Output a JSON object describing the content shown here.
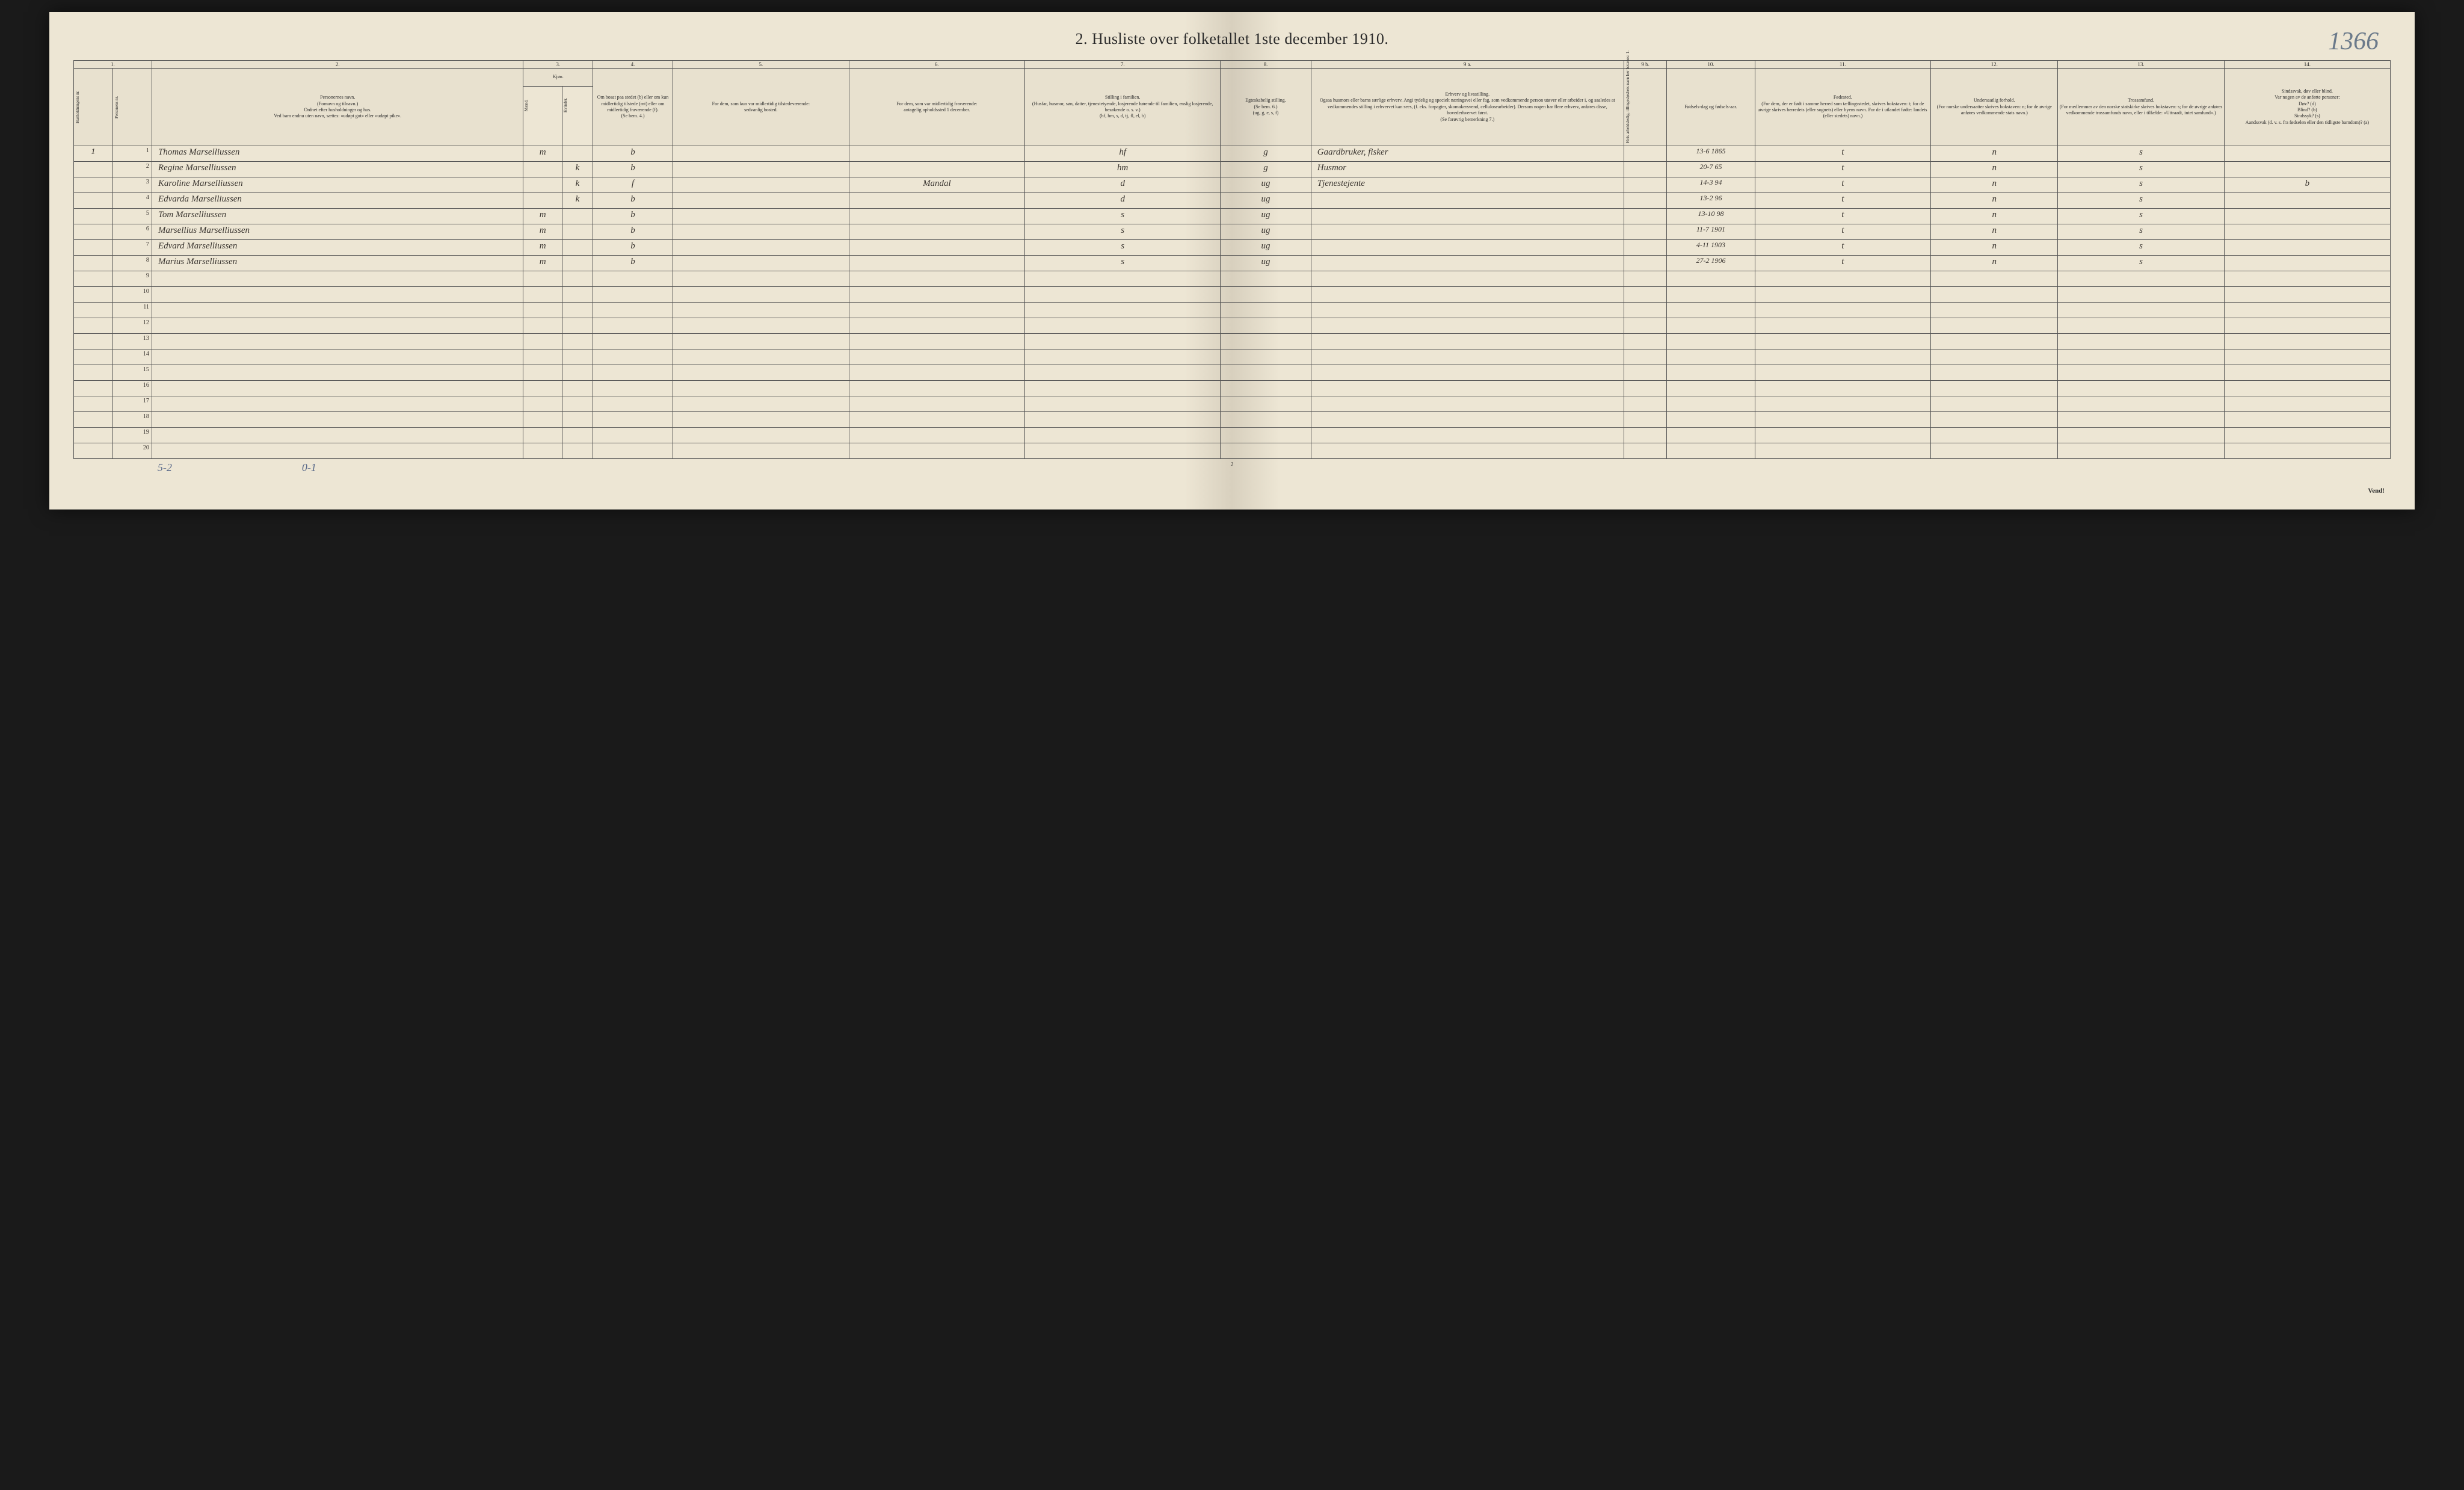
{
  "page_number_handwritten": "1366",
  "title": "2.  Husliste over folketallet 1ste december 1910.",
  "colors": {
    "paper": "#ede6d4",
    "fold": "#d8d0be",
    "ink_print": "#2a2a2a",
    "ink_hand": "#3a3530",
    "ink_blue": "#5a6a8a",
    "border": "#555555"
  },
  "column_numbers": [
    "1.",
    "2.",
    "3.",
    "4.",
    "5.",
    "6.",
    "7.",
    "8.",
    "9 a.",
    "9 b.",
    "10.",
    "11.",
    "12.",
    "13.",
    "14."
  ],
  "headers": {
    "col1a": "Husholdningens nr.",
    "col1b": "Personens nr.",
    "col2": "Personernes navn.\n(Fornavn og tilnavn.)\nOrdnet efter husholdninger og hus.\nVed barn endnu uten navn, sættes: «udøpt gut» eller «udøpt pike».",
    "col3": "Kjøn.",
    "col3a": "Mænd.",
    "col3b": "Kvinder.",
    "col3_sub": "m. | k.",
    "col4": "Om bosat paa stedet (b) eller om kun midlertidig tilstede (mt) eller om midlertidig fraværende (f).\n(Se bem. 4.)",
    "col5": "For dem, som kun var midlertidig tilstedeværende:\nsedvanlig bosted.",
    "col6": "For dem, som var midlertidig fraværende:\nantagelig opholdssted 1 december.",
    "col7": "Stilling i familien.\n(Husfar, husmor, søn, datter, tjenestetyende, losjerende hørende til familien, enslig losjerende, besøkende o. s. v.)\n(hf, hm, s, d, tj, fl, el, b)",
    "col8": "Egteskabelig stilling.\n(Se bem. 6.)\n(ug, g, e, s, f)",
    "col9a": "Erhverv og livsstilling.\nOgsaa husmors eller barns særlige erhverv. Angi tydelig og specielt næringsvei eller fag, som vedkommende person utøver eller arbeider i, og saaledes at vedkommendes stilling i erhvervet kan sees, (f. eks. forpagter, skomakersvend, cellulosearbeider). Dersom nogen har flere erhverv, anføres disse, hovederhvervet først.\n(Se forøvrig bemerkning 7.)",
    "col9b": "Hvis arbeidsledig, tillingesløshets navn her betænes: 1.",
    "col10": "Fødsels-dag og fødsels-aar.",
    "col11": "Fødested.\n(For dem, der er født i samme herred som tællingsstedet, skrives bokstaven: t; for de øvrige skrives herredets (eller sognets) eller byens navn. For de i utlandet fødte: landets (eller stedets) navn.)",
    "col12": "Undersaatlig forhold.\n(For norske undersaatter skrives bokstaven: n; for de øvrige anføres vedkommende stats navn.)",
    "col13": "Trossamfund.\n(For medlemmer av den norske statskirke skrives bokstaven: s; for de øvrige anføres vedkommende trossamfunds navn, eller i tilfælde: «Uttraadt, intet samfund».)",
    "col14": "Sindssvak, døv eller blind.\nVar nogen av de anførte personer:\nDøv? (d)\nBlind? (b)\nSindssyk? (s)\nAandssvak (d. v. s. fra fødselen eller den tidligste barndom)? (a)"
  },
  "rows": [
    {
      "household": "1",
      "num": "1",
      "name": "Thomas Marselliussen",
      "sex": "m",
      "resident": "b",
      "absent": "",
      "temp": "",
      "family": "hf",
      "marital": "g",
      "occupation": "Gaardbruker, fisker",
      "col9b": "",
      "birth": "13-6 1865",
      "birthplace": "t",
      "citizen": "n",
      "religion": "s",
      "disability": ""
    },
    {
      "household": "",
      "num": "2",
      "name": "Regine Marselliussen",
      "sex": "k",
      "resident": "b",
      "absent": "",
      "temp": "",
      "family": "hm",
      "marital": "g",
      "occupation": "Husmor",
      "col9b": "",
      "birth": "20-7 65",
      "birthplace": "t",
      "citizen": "n",
      "religion": "s",
      "disability": ""
    },
    {
      "household": "",
      "num": "3",
      "name": "Karoline Marselliussen",
      "sex": "k",
      "resident": "f",
      "absent": "",
      "temp": "Mandal",
      "family": "d",
      "marital": "ug",
      "occupation": "Tjenestejente",
      "col9b": "",
      "birth": "14-3 94",
      "birthplace": "t",
      "citizen": "n",
      "religion": "s",
      "disability": "b"
    },
    {
      "household": "",
      "num": "4",
      "name": "Edvarda Marselliussen",
      "sex": "k",
      "resident": "b",
      "absent": "",
      "temp": "",
      "family": "d",
      "marital": "ug",
      "occupation": "",
      "col9b": "",
      "birth": "13-2 96",
      "birthplace": "t",
      "citizen": "n",
      "religion": "s",
      "disability": ""
    },
    {
      "household": "",
      "num": "5",
      "name": "Tom Marselliussen",
      "sex": "m",
      "resident": "b",
      "absent": "",
      "temp": "",
      "family": "s",
      "marital": "ug",
      "occupation": "",
      "col9b": "",
      "birth": "13-10 98",
      "birthplace": "t",
      "citizen": "n",
      "religion": "s",
      "disability": ""
    },
    {
      "household": "",
      "num": "6",
      "name": "Marsellius Marselliussen",
      "sex": "m",
      "resident": "b",
      "absent": "",
      "temp": "",
      "family": "s",
      "marital": "ug",
      "occupation": "",
      "col9b": "",
      "birth": "11-7 1901",
      "birthplace": "t",
      "citizen": "n",
      "religion": "s",
      "disability": ""
    },
    {
      "household": "",
      "num": "7",
      "name": "Edvard Marselliussen",
      "sex": "m",
      "resident": "b",
      "absent": "",
      "temp": "",
      "family": "s",
      "marital": "ug",
      "occupation": "",
      "col9b": "",
      "birth": "4-11 1903",
      "birthplace": "t",
      "citizen": "n",
      "religion": "s",
      "disability": ""
    },
    {
      "household": "",
      "num": "8",
      "name": "Marius Marselliussen",
      "sex": "m",
      "resident": "b",
      "absent": "",
      "temp": "",
      "family": "s",
      "marital": "ug",
      "occupation": "",
      "col9b": "",
      "birth": "27-2 1906",
      "birthplace": "t",
      "citizen": "n",
      "religion": "s",
      "disability": ""
    }
  ],
  "empty_row_numbers": [
    "9",
    "10",
    "11",
    "12",
    "13",
    "14",
    "15",
    "16",
    "17",
    "18",
    "19",
    "20"
  ],
  "footer": {
    "note_left": "5-2",
    "note_mid": "0-1",
    "page_num_print": "2",
    "vend": "Vend!"
  }
}
